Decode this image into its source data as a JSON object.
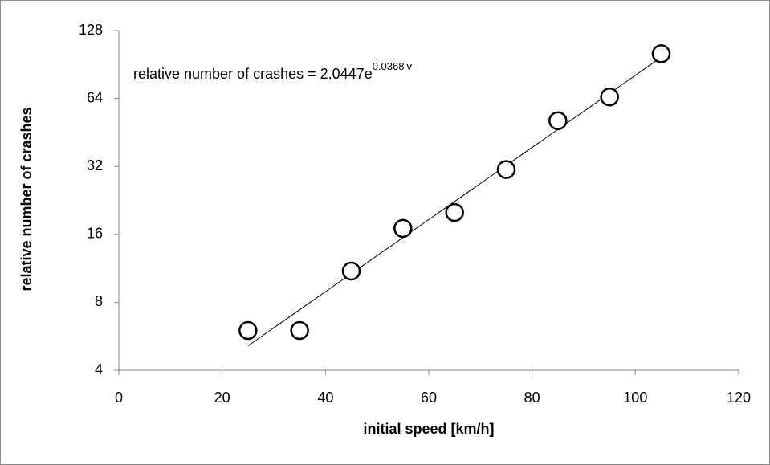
{
  "chart_data": {
    "type": "scatter",
    "x_label": "initial speed [km/h]",
    "y_label": "relative number of crashes",
    "x": [
      25,
      35,
      45,
      55,
      65,
      75,
      85,
      95,
      105
    ],
    "values": [
      6,
      6,
      11,
      17,
      20,
      31,
      51,
      65,
      101
    ],
    "xlim": [
      0,
      120
    ],
    "xticks": [
      0,
      20,
      40,
      60,
      80,
      100,
      120
    ],
    "ylim": [
      4,
      128
    ],
    "yticks": [
      4,
      8,
      16,
      32,
      64,
      128
    ],
    "ylog": true,
    "grid": false,
    "marker_color": "#000000",
    "trendline": {
      "type": "exponential",
      "label_prefix": "relative number of crashes = ",
      "a": 2.0447,
      "base": "e",
      "b": 0.0368,
      "variable": "v"
    }
  }
}
